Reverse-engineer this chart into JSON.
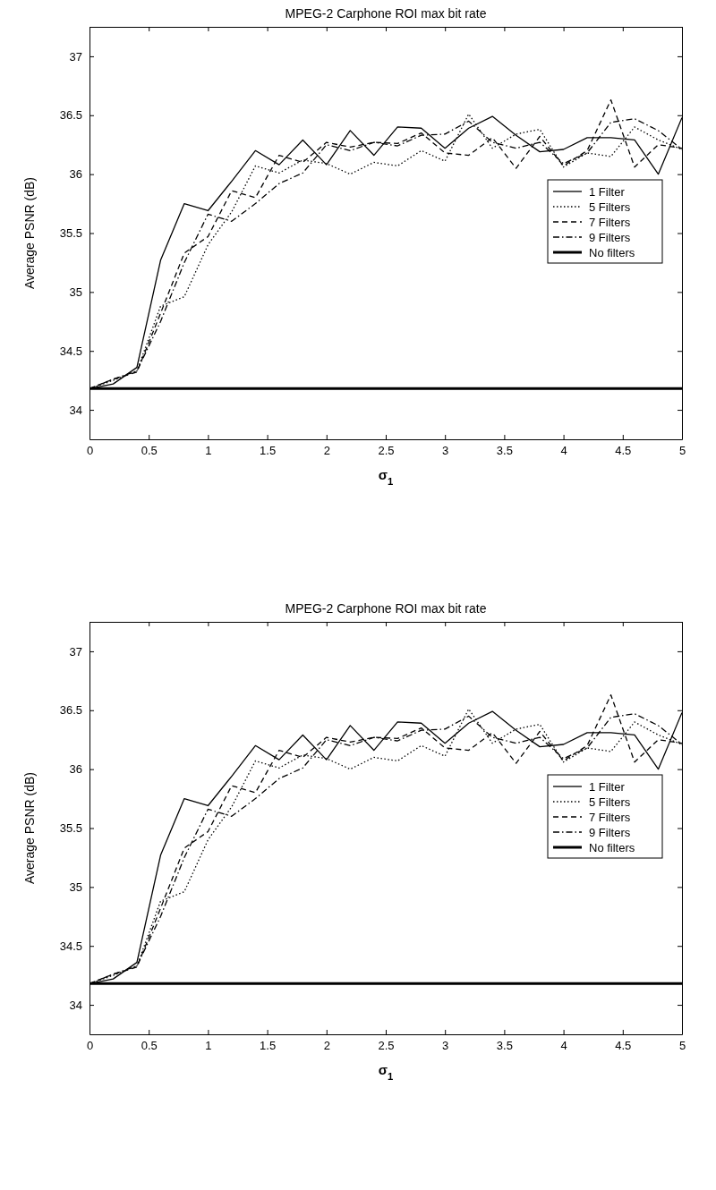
{
  "chart_data": [
    {
      "type": "line",
      "title": "MPEG-2 Carphone ROI max bit rate",
      "xlabel": "σ$_{1}$",
      "ylabel": "Average PSNR (dB)",
      "x": [
        0,
        0.2,
        0.4,
        0.6,
        0.8,
        1,
        1.2,
        1.4,
        1.6,
        1.8,
        2,
        2.2,
        2.4,
        2.6,
        2.8,
        3,
        3.2,
        3.4,
        3.6,
        3.8,
        4,
        4.2,
        4.4,
        4.6,
        4.8,
        5
      ],
      "xlim": [
        0,
        5
      ],
      "xticks": [
        0,
        0.5,
        1,
        1.5,
        2,
        2.5,
        3,
        3.5,
        4,
        4.5,
        5
      ],
      "ylim": [
        33.75,
        37.25
      ],
      "yticks": [
        34,
        34.5,
        35,
        35.5,
        36,
        36.5,
        37
      ],
      "legend": "right",
      "grid": false,
      "marker": "none",
      "series": [
        {
          "name": "1 Filter",
          "color": "#000000",
          "line_style": "solid",
          "values": [
            34.18,
            34.22,
            34.36,
            35.27,
            35.75,
            35.69,
            35.94,
            36.2,
            36.08,
            36.29,
            36.08,
            36.37,
            36.16,
            36.4,
            36.39,
            36.22,
            36.39,
            36.49,
            36.33,
            36.19,
            36.21,
            36.31,
            36.31,
            36.29,
            36.0,
            36.48
          ]
        },
        {
          "name": "5 Filters",
          "color": "#000000",
          "line_style": "dotted",
          "values": [
            34.18,
            34.25,
            34.33,
            34.88,
            34.96,
            35.4,
            35.68,
            36.07,
            36.01,
            36.12,
            36.09,
            36.0,
            36.1,
            36.07,
            36.2,
            36.11,
            36.51,
            36.22,
            36.34,
            36.38,
            36.06,
            36.18,
            36.15,
            36.4,
            36.29,
            36.21
          ]
        },
        {
          "name": "7 Filters",
          "color": "#000000",
          "line_style": "dashed",
          "values": [
            34.18,
            34.26,
            34.32,
            34.82,
            35.33,
            35.47,
            35.86,
            35.8,
            36.16,
            36.1,
            36.27,
            36.23,
            36.27,
            36.26,
            36.35,
            36.18,
            36.16,
            36.31,
            36.05,
            36.32,
            36.07,
            36.2,
            36.63,
            36.06,
            36.25,
            36.22
          ]
        },
        {
          "name": "9 Filters",
          "color": "#000000",
          "line_style": "dashdot",
          "values": [
            34.18,
            34.26,
            34.33,
            34.75,
            35.25,
            35.66,
            35.6,
            35.75,
            35.92,
            36.01,
            36.25,
            36.2,
            36.27,
            36.24,
            36.33,
            36.34,
            36.45,
            36.27,
            36.22,
            36.27,
            36.09,
            36.18,
            36.44,
            36.47,
            36.37,
            36.21
          ]
        },
        {
          "name": "No filters",
          "color": "#000000",
          "line_style": "solid",
          "values": [
            34.18,
            34.18,
            34.18,
            34.18,
            34.18,
            34.18,
            34.18,
            34.18,
            34.18,
            34.18,
            34.18,
            34.18,
            34.18,
            34.18,
            34.18,
            34.18,
            34.18,
            34.18,
            34.18,
            34.18,
            34.18,
            34.18,
            34.18,
            34.18,
            34.18,
            34.18
          ]
        }
      ]
    },
    {
      "type": "line",
      "title": "MPEG-2 Carphone ROI max bit rate",
      "xlabel": "σ$_{1}$",
      "ylabel": "Average PSNR (dB)",
      "x": [
        0,
        0.2,
        0.4,
        0.6,
        0.8,
        1,
        1.2,
        1.4,
        1.6,
        1.8,
        2,
        2.2,
        2.4,
        2.6,
        2.8,
        3,
        3.2,
        3.4,
        3.6,
        3.8,
        4,
        4.2,
        4.4,
        4.6,
        4.8,
        5
      ],
      "xlim": [
        0,
        5
      ],
      "xticks": [
        0,
        0.5,
        1,
        1.5,
        2,
        2.5,
        3,
        3.5,
        4,
        4.5,
        5
      ],
      "ylim": [
        33.75,
        37.25
      ],
      "yticks": [
        34,
        34.5,
        35,
        35.5,
        36,
        36.5,
        37
      ],
      "legend": "right",
      "grid": false,
      "marker": "none",
      "series": [
        {
          "name": "1 Filter",
          "color": "#000000",
          "line_style": "solid",
          "values": [
            34.18,
            34.22,
            34.36,
            35.27,
            35.75,
            35.69,
            35.94,
            36.2,
            36.08,
            36.29,
            36.08,
            36.37,
            36.16,
            36.4,
            36.39,
            36.22,
            36.39,
            36.49,
            36.33,
            36.19,
            36.21,
            36.31,
            36.31,
            36.29,
            36.0,
            36.48
          ]
        },
        {
          "name": "5 Filters",
          "color": "#000000",
          "line_style": "dotted",
          "values": [
            34.18,
            34.25,
            34.33,
            34.88,
            34.96,
            35.4,
            35.68,
            36.07,
            36.01,
            36.12,
            36.09,
            36.0,
            36.1,
            36.07,
            36.2,
            36.11,
            36.51,
            36.22,
            36.34,
            36.38,
            36.06,
            36.18,
            36.15,
            36.4,
            36.29,
            36.21
          ]
        },
        {
          "name": "7 Filters",
          "color": "#000000",
          "line_style": "dashed",
          "values": [
            34.18,
            34.26,
            34.32,
            34.82,
            35.33,
            35.47,
            35.86,
            35.8,
            36.16,
            36.1,
            36.27,
            36.23,
            36.27,
            36.26,
            36.35,
            36.18,
            36.16,
            36.31,
            36.05,
            36.32,
            36.07,
            36.2,
            36.63,
            36.06,
            36.25,
            36.22
          ]
        },
        {
          "name": "9 Filters",
          "color": "#000000",
          "line_style": "dashdot",
          "values": [
            34.18,
            34.26,
            34.33,
            34.75,
            35.25,
            35.66,
            35.6,
            35.75,
            35.92,
            36.01,
            36.25,
            36.2,
            36.27,
            36.24,
            36.33,
            36.34,
            36.45,
            36.27,
            36.22,
            36.27,
            36.09,
            36.18,
            36.44,
            36.47,
            36.37,
            36.21
          ]
        },
        {
          "name": "No filters",
          "color": "#000000",
          "line_style": "solid",
          "values": [
            34.18,
            34.18,
            34.18,
            34.18,
            34.18,
            34.18,
            34.18,
            34.18,
            34.18,
            34.18,
            34.18,
            34.18,
            34.18,
            34.18,
            34.18,
            34.18,
            34.18,
            34.18,
            34.18,
            34.18,
            34.18,
            34.18,
            34.18,
            34.18,
            34.18,
            34.18
          ]
        }
      ]
    }
  ]
}
